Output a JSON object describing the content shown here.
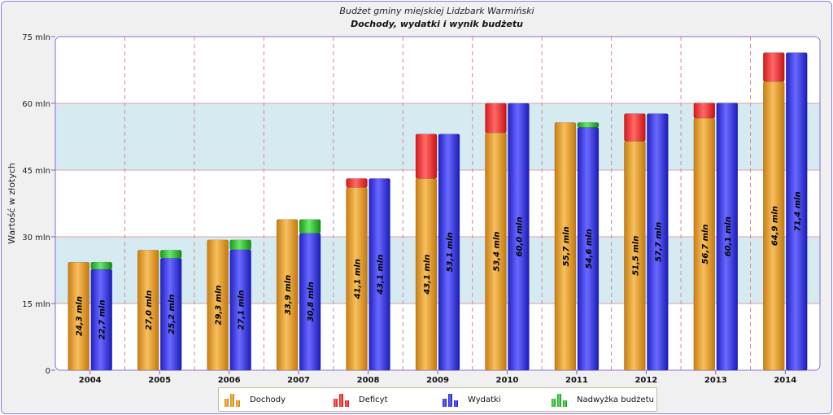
{
  "chart_data": {
    "type": "bar",
    "title": "Budżet gminy miejskiej Lidzbark Warmiński",
    "subtitle": "Dochody, wydatki i wynik budżetu",
    "ylabel": "Wartość w złotych",
    "xlabel": "",
    "ylim": [
      0,
      75
    ],
    "yticks": [
      0,
      15,
      30,
      45,
      60,
      75
    ],
    "ytick_labels": [
      "0",
      "15 mln",
      "30 mln",
      "45 mln",
      "60 mln",
      "75 mln"
    ],
    "categories": [
      "2004",
      "2005",
      "2006",
      "2007",
      "2008",
      "2009",
      "2010",
      "2011",
      "2012",
      "2013",
      "2014"
    ],
    "series": [
      {
        "name": "Dochody",
        "values": [
          24.3,
          27.0,
          29.3,
          33.9,
          41.1,
          43.1,
          53.4,
          55.7,
          51.5,
          56.7,
          64.9
        ],
        "labels": [
          "24,3 mln",
          "27,0 mln",
          "29,3 mln",
          "33,9 mln",
          "41,1 mln",
          "43,1 mln",
          "53,4 mln",
          "55,7 mln",
          "51,5 mln",
          "56,7 mln",
          "64,9 mln"
        ]
      },
      {
        "name": "Deficyt",
        "values": [
          0,
          0,
          0,
          0,
          2.0,
          10.0,
          6.6,
          0,
          6.2,
          3.4,
          6.5
        ]
      },
      {
        "name": "Wydatki",
        "values": [
          22.7,
          25.2,
          27.1,
          30.8,
          43.1,
          53.1,
          60.0,
          54.6,
          57.7,
          60.1,
          71.4
        ],
        "labels": [
          "22,7 mln",
          "25,2 mln",
          "27,1 mln",
          "30,8 mln",
          "43,1 mln",
          "53,1 mln",
          "60,0 mln",
          "54,6 mln",
          "57,7 mln",
          "60,1 mln",
          "71,4 mln"
        ]
      },
      {
        "name": "Nadwyżka budżetu",
        "values": [
          1.6,
          1.8,
          2.2,
          3.1,
          0,
          0,
          0,
          1.1,
          0,
          0,
          0
        ]
      }
    ],
    "legend_position": "bottom",
    "grid": true
  },
  "colors": {
    "dochody": "#e8a530",
    "deficyt": "#ff3030",
    "wydatki": "#3b3bf0",
    "nadwyzka": "#30c030",
    "band": "#d6eaf2",
    "gridline": "#e0a0a0",
    "axis": "#7a5ac8"
  },
  "legend": {
    "items": [
      {
        "label": "Dochody",
        "color": "#e8a530"
      },
      {
        "label": "Deficyt",
        "color": "#ff3030"
      },
      {
        "label": "Wydatki",
        "color": "#3b3bf0"
      },
      {
        "label": "Nadwyżka budżetu",
        "color": "#30c030"
      }
    ]
  }
}
